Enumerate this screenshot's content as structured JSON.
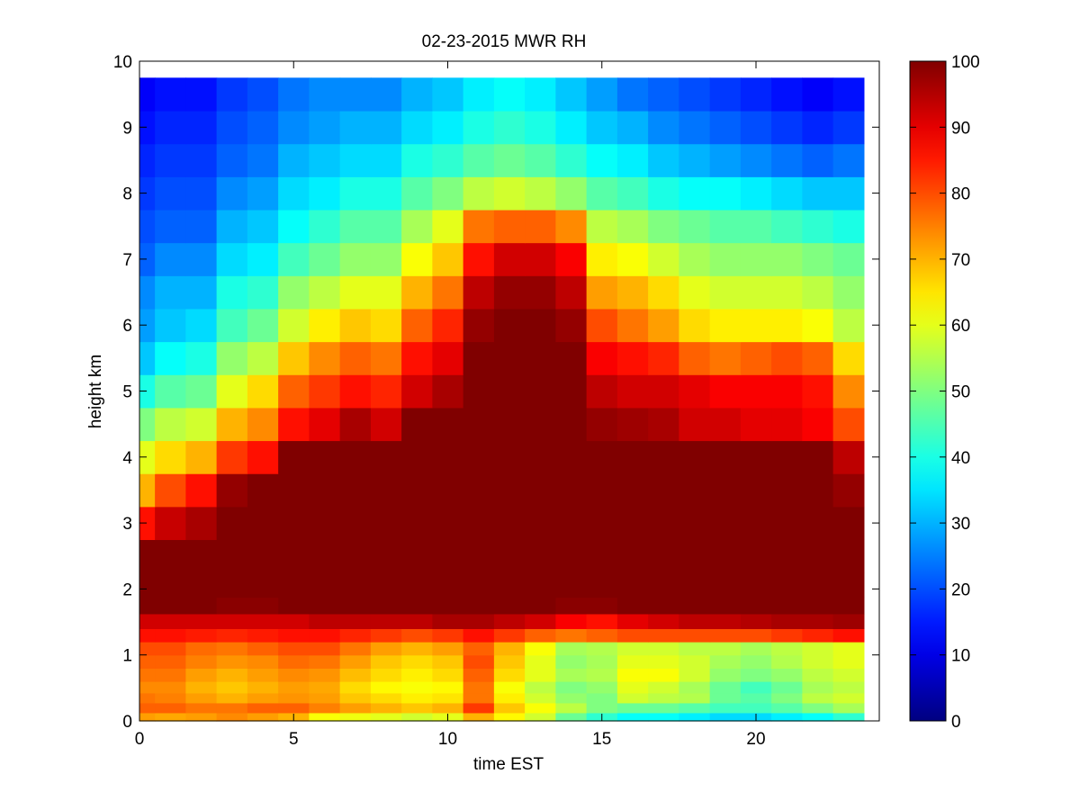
{
  "chart_data": {
    "type": "heatmap",
    "title": "02-23-2015 MWR RH",
    "xlabel": "time EST",
    "ylabel": "height km",
    "xlim": [
      0,
      24
    ],
    "ylim": [
      0,
      10
    ],
    "x_ticks": [
      0,
      5,
      10,
      15,
      20
    ],
    "y_ticks": [
      0,
      1,
      2,
      3,
      4,
      5,
      6,
      7,
      8,
      9,
      10
    ],
    "colorbar": {
      "colormap": "jet",
      "clim": [
        0,
        100
      ],
      "ticks": [
        0,
        10,
        20,
        30,
        40,
        50,
        60,
        70,
        80,
        90,
        100
      ]
    },
    "x": [
      0,
      1,
      2,
      3,
      4,
      5,
      6,
      7,
      8,
      9,
      10,
      11,
      12,
      13,
      14,
      15,
      16,
      17,
      18,
      19,
      20,
      21,
      22,
      23
    ],
    "y": [
      0.05,
      0.2,
      0.35,
      0.5,
      0.7,
      0.9,
      1.1,
      1.3,
      1.5,
      1.75,
      2.0,
      2.5,
      3.0,
      3.5,
      4.0,
      4.5,
      5.0,
      5.5,
      6.0,
      6.5,
      7.0,
      7.5,
      8.0,
      8.5,
      9.0,
      9.5
    ],
    "values": [
      [
        72,
        71,
        72,
        74,
        72,
        70,
        62,
        61,
        60,
        58,
        60,
        70,
        63,
        58,
        48,
        42,
        38,
        38,
        36,
        34,
        34,
        36,
        38,
        42
      ],
      [
        78,
        78,
        76,
        76,
        78,
        78,
        75,
        72,
        70,
        68,
        70,
        82,
        68,
        62,
        56,
        50,
        48,
        48,
        46,
        44,
        44,
        46,
        50,
        54
      ],
      [
        76,
        75,
        72,
        70,
        72,
        73,
        72,
        68,
        66,
        64,
        65,
        76,
        64,
        58,
        52,
        50,
        58,
        56,
        55,
        48,
        46,
        50,
        56,
        58
      ],
      [
        74,
        74,
        70,
        68,
        70,
        72,
        71,
        66,
        63,
        62,
        63,
        76,
        62,
        56,
        50,
        52,
        60,
        58,
        54,
        48,
        44,
        48,
        54,
        56
      ],
      [
        76,
        76,
        72,
        70,
        72,
        74,
        73,
        69,
        66,
        64,
        66,
        78,
        66,
        60,
        54,
        55,
        62,
        62,
        58,
        52,
        50,
        52,
        56,
        58
      ],
      [
        78,
        78,
        75,
        73,
        74,
        77,
        76,
        72,
        68,
        66,
        68,
        80,
        68,
        60,
        52,
        54,
        60,
        60,
        58,
        54,
        52,
        55,
        58,
        60
      ],
      [
        80,
        80,
        77,
        76,
        78,
        80,
        80,
        76,
        72,
        70,
        72,
        78,
        70,
        62,
        54,
        55,
        58,
        58,
        56,
        56,
        54,
        56,
        58,
        60
      ],
      [
        86,
        86,
        85,
        84,
        85,
        86,
        86,
        84,
        82,
        80,
        82,
        86,
        82,
        78,
        76,
        78,
        80,
        80,
        80,
        80,
        80,
        82,
        84,
        86
      ],
      [
        92,
        92,
        92,
        92,
        92,
        92,
        94,
        94,
        94,
        94,
        96,
        96,
        94,
        92,
        88,
        86,
        90,
        92,
        94,
        94,
        95,
        96,
        96,
        97
      ],
      [
        100,
        100,
        100,
        99,
        99,
        100,
        100,
        100,
        100,
        100,
        100,
        100,
        100,
        100,
        99,
        99,
        100,
        100,
        100,
        100,
        100,
        100,
        100,
        100
      ],
      [
        100,
        100,
        100,
        100,
        100,
        100,
        100,
        100,
        100,
        100,
        100,
        100,
        100,
        100,
        100,
        100,
        100,
        100,
        100,
        100,
        100,
        100,
        100,
        100
      ],
      [
        100,
        100,
        100,
        100,
        100,
        100,
        100,
        100,
        100,
        100,
        100,
        100,
        100,
        100,
        100,
        100,
        100,
        100,
        100,
        100,
        100,
        100,
        100,
        100
      ],
      [
        86,
        93,
        96,
        100,
        100,
        100,
        100,
        100,
        100,
        100,
        100,
        100,
        100,
        100,
        100,
        100,
        100,
        100,
        100,
        100,
        100,
        100,
        100,
        100
      ],
      [
        70,
        80,
        86,
        98,
        100,
        100,
        100,
        100,
        100,
        100,
        100,
        100,
        100,
        100,
        100,
        100,
        100,
        100,
        100,
        100,
        100,
        100,
        100,
        98
      ],
      [
        60,
        66,
        70,
        82,
        86,
        100,
        100,
        100,
        100,
        100,
        100,
        100,
        100,
        100,
        100,
        100,
        100,
        100,
        100,
        100,
        100,
        100,
        100,
        94
      ],
      [
        50,
        56,
        58,
        70,
        74,
        86,
        90,
        96,
        92,
        100,
        100,
        100,
        100,
        100,
        100,
        98,
        97,
        96,
        92,
        92,
        90,
        90,
        88,
        80
      ],
      [
        40,
        46,
        48,
        60,
        66,
        78,
        82,
        86,
        84,
        92,
        96,
        100,
        100,
        100,
        100,
        94,
        92,
        92,
        90,
        88,
        88,
        88,
        86,
        74
      ],
      [
        32,
        38,
        40,
        52,
        56,
        68,
        74,
        78,
        76,
        86,
        90,
        100,
        100,
        100,
        100,
        88,
        86,
        84,
        78,
        76,
        78,
        80,
        78,
        66
      ],
      [
        28,
        32,
        34,
        44,
        48,
        58,
        64,
        68,
        66,
        78,
        84,
        98,
        100,
        100,
        98,
        80,
        76,
        72,
        66,
        64,
        64,
        64,
        62,
        56
      ],
      [
        26,
        30,
        30,
        40,
        42,
        52,
        56,
        60,
        60,
        70,
        76,
        94,
        98,
        98,
        94,
        72,
        70,
        66,
        60,
        58,
        58,
        58,
        56,
        52
      ],
      [
        22,
        26,
        26,
        34,
        36,
        44,
        48,
        52,
        52,
        62,
        68,
        86,
        92,
        92,
        88,
        64,
        62,
        58,
        54,
        52,
        52,
        52,
        50,
        48
      ],
      [
        20,
        22,
        22,
        30,
        32,
        38,
        42,
        46,
        46,
        54,
        60,
        76,
        78,
        78,
        74,
        56,
        54,
        50,
        48,
        46,
        46,
        44,
        42,
        40
      ],
      [
        18,
        20,
        20,
        26,
        28,
        34,
        36,
        40,
        40,
        46,
        50,
        56,
        58,
        56,
        52,
        46,
        44,
        40,
        38,
        38,
        36,
        34,
        32,
        32
      ],
      [
        16,
        18,
        18,
        22,
        24,
        30,
        32,
        34,
        34,
        40,
        42,
        46,
        48,
        46,
        42,
        38,
        36,
        32,
        30,
        28,
        26,
        24,
        22,
        24
      ],
      [
        14,
        16,
        16,
        20,
        22,
        26,
        28,
        30,
        30,
        34,
        36,
        40,
        42,
        40,
        36,
        32,
        30,
        26,
        24,
        22,
        20,
        18,
        16,
        18
      ],
      [
        12,
        14,
        14,
        18,
        20,
        24,
        26,
        26,
        26,
        30,
        32,
        36,
        38,
        36,
        32,
        28,
        24,
        22,
        20,
        18,
        16,
        14,
        12,
        14
      ]
    ]
  }
}
